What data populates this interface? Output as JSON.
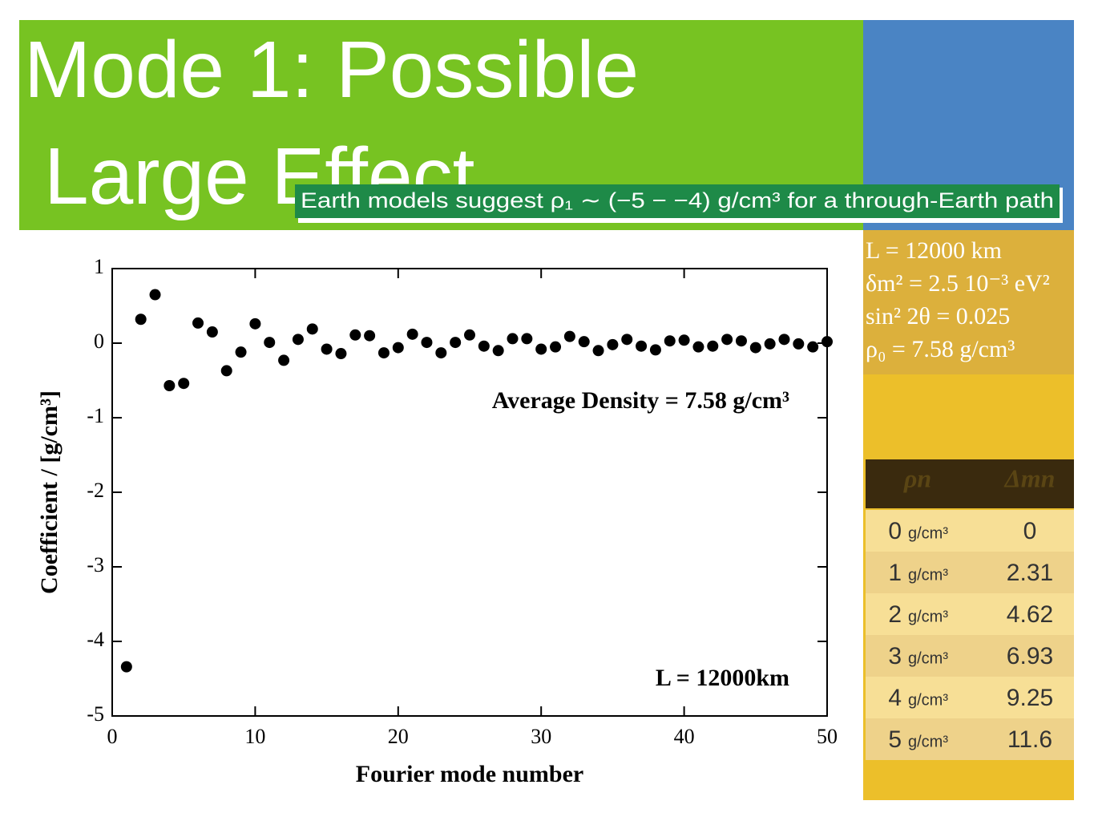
{
  "title": "Mode 1: Possible Large Effect",
  "banner": "Earth models suggest ρ₁ ∼ (−5 − −4) g/cm³ for a through-Earth path",
  "parameters": [
    "L = 12000 km",
    "δm² = 2.5 10⁻³ eV²",
    "sin² 2θ = 0.025",
    "ρ₀ = 7.58 g/cm³"
  ],
  "table": {
    "header": [
      "ρn",
      "Δmn"
    ],
    "rows": [
      [
        "0",
        "g/cm³",
        "0"
      ],
      [
        "1",
        "g/cm³",
        "2.31"
      ],
      [
        "2",
        "g/cm³",
        "4.62"
      ],
      [
        "3",
        "g/cm³",
        "6.93"
      ],
      [
        "4",
        "g/cm³",
        "9.25"
      ],
      [
        "5",
        "g/cm³",
        "11.6"
      ]
    ]
  },
  "chart_data": {
    "type": "scatter",
    "xlabel": "Fourier mode number",
    "ylabel": "Coefficient / [g/cm³]",
    "annotations": [
      "Average Density = 7.58 g/cm³",
      "L = 12000km"
    ],
    "x": [
      1,
      2,
      3,
      4,
      5,
      6,
      7,
      8,
      9,
      10,
      11,
      12,
      13,
      14,
      15,
      16,
      17,
      18,
      19,
      20,
      21,
      22,
      23,
      24,
      25,
      26,
      27,
      28,
      29,
      30,
      31,
      32,
      33,
      34,
      35,
      36,
      37,
      38,
      39,
      40,
      41,
      42,
      43,
      44,
      45,
      46,
      47,
      48,
      49,
      50
    ],
    "values": [
      -4.34,
      0.32,
      0.65,
      -0.57,
      -0.54,
      0.27,
      0.15,
      -0.37,
      -0.12,
      0.26,
      0.01,
      -0.23,
      0.05,
      0.19,
      -0.08,
      -0.14,
      0.11,
      0.1,
      -0.13,
      -0.06,
      0.12,
      0.01,
      -0.13,
      0.01,
      0.11,
      -0.04,
      -0.1,
      0.06,
      0.06,
      -0.08,
      -0.05,
      0.09,
      0.02,
      -0.1,
      -0.02,
      0.05,
      -0.04,
      -0.09,
      0.03,
      0.04,
      -0.05,
      -0.04,
      0.05,
      0.03,
      -0.06,
      -0.01,
      0.05,
      -0.01,
      -0.05,
      0.02
    ],
    "color": "#000000",
    "xlim": [
      0,
      50
    ],
    "xticks": [
      0,
      10,
      20,
      30,
      40,
      50
    ],
    "ylim": [
      -5,
      1
    ],
    "yticks": [
      -5,
      -4,
      -3,
      -2,
      -1,
      0,
      1
    ]
  }
}
